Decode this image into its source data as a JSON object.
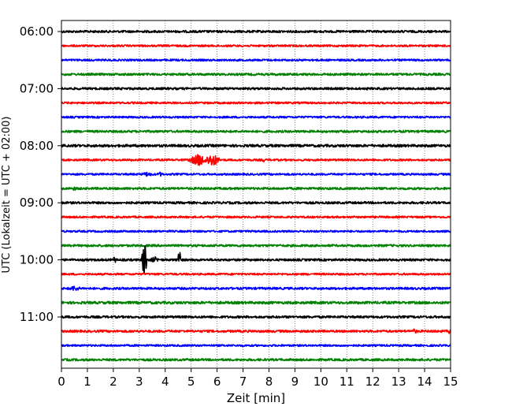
{
  "chart_data": {
    "type": "line",
    "title": "",
    "xlabel": "Zeit  [min]",
    "ylabel": "UTC (Lokalzeit = UTC + 02:00)",
    "xlim": [
      0,
      15
    ],
    "x_ticks": [
      "0",
      "1",
      "2",
      "3",
      "4",
      "5",
      "6",
      "7",
      "8",
      "9",
      "10",
      "11",
      "12",
      "13",
      "14",
      "15"
    ],
    "y_ticks": [
      "06:00",
      "07:00",
      "08:00",
      "09:00",
      "10:00",
      "11:00"
    ],
    "grid": "vertical dotted",
    "trace_interval_min": 15,
    "trace_colors": [
      "#000000",
      "#ff0000",
      "#0000ff",
      "#008000"
    ],
    "series": [
      {
        "start": "06:00",
        "color": "#000000",
        "noise": 1.4,
        "events": []
      },
      {
        "start": "06:15",
        "color": "#ff0000",
        "noise": 1.2,
        "events": []
      },
      {
        "start": "06:30",
        "color": "#0000ff",
        "noise": 1.2,
        "events": []
      },
      {
        "start": "06:45",
        "color": "#008000",
        "noise": 1.4,
        "events": []
      },
      {
        "start": "07:00",
        "color": "#000000",
        "noise": 1.4,
        "events": []
      },
      {
        "start": "07:15",
        "color": "#ff0000",
        "noise": 1.2,
        "events": []
      },
      {
        "start": "07:30",
        "color": "#0000ff",
        "noise": 1.2,
        "events": []
      },
      {
        "start": "07:45",
        "color": "#008000",
        "noise": 1.4,
        "events": []
      },
      {
        "start": "08:00",
        "color": "#000000",
        "noise": 1.6,
        "events": []
      },
      {
        "start": "08:15",
        "color": "#ff0000",
        "noise": 1.2,
        "events": [
          {
            "t": 4.6,
            "amp": 4,
            "dur": 0.06
          },
          {
            "t": 5.3,
            "amp": 8,
            "dur": 0.5
          },
          {
            "t": 5.8,
            "amp": 9,
            "dur": 0.4
          },
          {
            "t": 7.8,
            "amp": 4,
            "dur": 0.05
          }
        ]
      },
      {
        "start": "08:30",
        "color": "#0000ff",
        "noise": 1.2,
        "events": [
          {
            "t": 3.3,
            "amp": 3,
            "dur": 0.4
          },
          {
            "t": 3.8,
            "amp": 3,
            "dur": 0.2
          }
        ]
      },
      {
        "start": "08:45",
        "color": "#008000",
        "noise": 1.4,
        "events": [
          {
            "t": 0.5,
            "amp": 2.5,
            "dur": 0.3
          }
        ]
      },
      {
        "start": "09:00",
        "color": "#000000",
        "noise": 1.4,
        "events": []
      },
      {
        "start": "09:15",
        "color": "#ff0000",
        "noise": 1.2,
        "events": []
      },
      {
        "start": "09:30",
        "color": "#0000ff",
        "noise": 1.2,
        "events": []
      },
      {
        "start": "09:45",
        "color": "#008000",
        "noise": 1.4,
        "events": []
      },
      {
        "start": "10:00",
        "color": "#000000",
        "noise": 1.4,
        "events": [
          {
            "t": 2.05,
            "amp": 10,
            "dur": 0.05
          },
          {
            "t": 3.2,
            "amp": 34,
            "dur": 0.12
          },
          {
            "t": 3.6,
            "amp": 4,
            "dur": 0.3
          },
          {
            "t": 4.55,
            "amp": 22,
            "dur": 0.08
          }
        ]
      },
      {
        "start": "10:15",
        "color": "#ff0000",
        "noise": 1.2,
        "events": []
      },
      {
        "start": "10:30",
        "color": "#0000ff",
        "noise": 1.4,
        "events": [
          {
            "t": 0.5,
            "amp": 3.5,
            "dur": 0.4
          }
        ]
      },
      {
        "start": "10:45",
        "color": "#008000",
        "noise": 1.6,
        "events": [
          {
            "t": 14.9,
            "amp": 3,
            "dur": 0.1
          }
        ]
      },
      {
        "start": "11:00",
        "color": "#000000",
        "noise": 1.4,
        "events": []
      },
      {
        "start": "11:15",
        "color": "#ff0000",
        "noise": 1.4,
        "events": [
          {
            "t": 13.6,
            "amp": 3,
            "dur": 0.3
          },
          {
            "t": 14.95,
            "amp": 6,
            "dur": 0.06
          }
        ]
      },
      {
        "start": "11:30",
        "color": "#0000ff",
        "noise": 1.2,
        "events": []
      },
      {
        "start": "11:45",
        "color": "#008000",
        "noise": 1.4,
        "events": []
      }
    ]
  }
}
